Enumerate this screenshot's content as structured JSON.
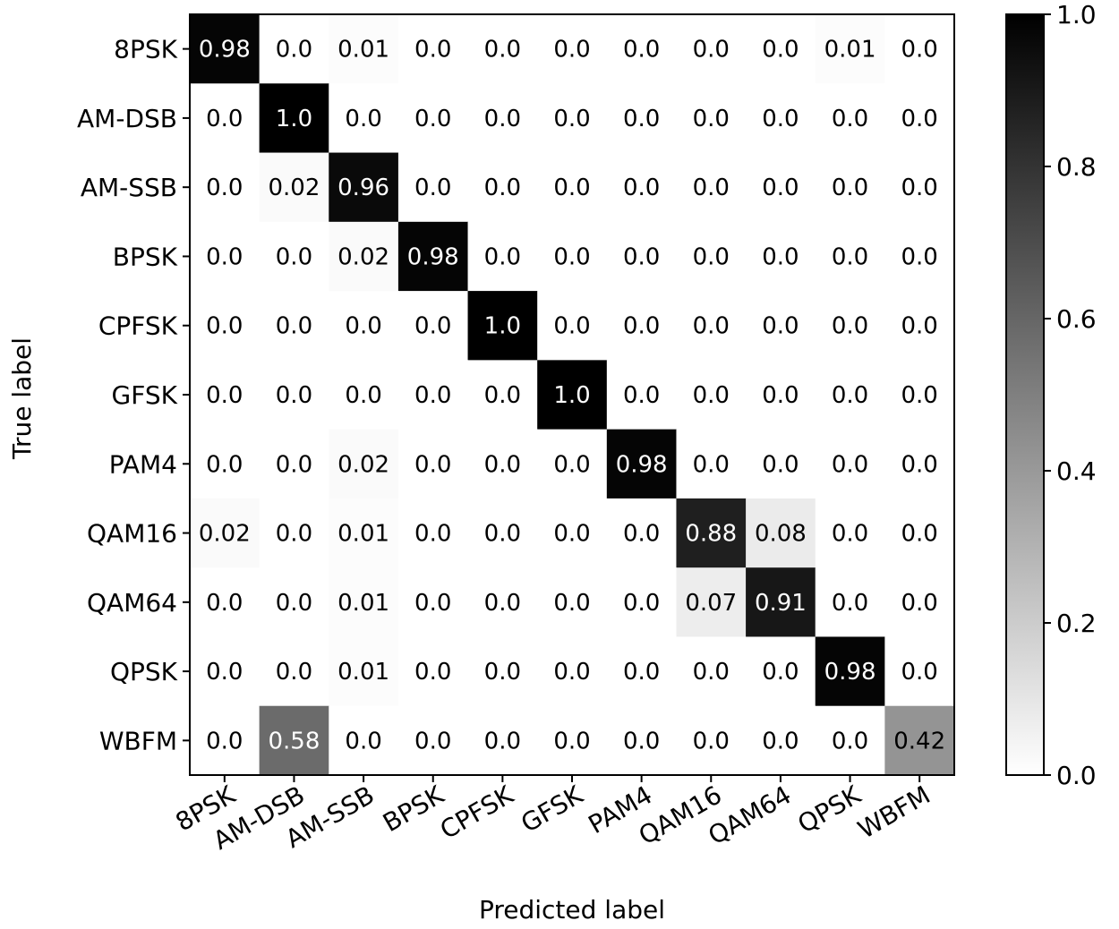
{
  "chart_data": {
    "type": "heatmap",
    "title": "",
    "xlabel": "Predicted label",
    "ylabel": "True label",
    "x_categories": [
      "8PSK",
      "AM-DSB",
      "AM-SSB",
      "BPSK",
      "CPFSK",
      "GFSK",
      "PAM4",
      "QAM16",
      "QAM64",
      "QPSK",
      "WBFM"
    ],
    "y_categories": [
      "8PSK",
      "AM-DSB",
      "AM-SSB",
      "BPSK",
      "CPFSK",
      "GFSK",
      "PAM4",
      "QAM16",
      "QAM64",
      "QPSK",
      "WBFM"
    ],
    "matrix": [
      [
        0.98,
        0.0,
        0.01,
        0.0,
        0.0,
        0.0,
        0.0,
        0.0,
        0.0,
        0.01,
        0.0
      ],
      [
        0.0,
        1.0,
        0.0,
        0.0,
        0.0,
        0.0,
        0.0,
        0.0,
        0.0,
        0.0,
        0.0
      ],
      [
        0.0,
        0.02,
        0.96,
        0.0,
        0.0,
        0.0,
        0.0,
        0.0,
        0.0,
        0.0,
        0.0
      ],
      [
        0.0,
        0.0,
        0.02,
        0.98,
        0.0,
        0.0,
        0.0,
        0.0,
        0.0,
        0.0,
        0.0
      ],
      [
        0.0,
        0.0,
        0.0,
        0.0,
        1.0,
        0.0,
        0.0,
        0.0,
        0.0,
        0.0,
        0.0
      ],
      [
        0.0,
        0.0,
        0.0,
        0.0,
        0.0,
        1.0,
        0.0,
        0.0,
        0.0,
        0.0,
        0.0
      ],
      [
        0.0,
        0.0,
        0.02,
        0.0,
        0.0,
        0.0,
        0.98,
        0.0,
        0.0,
        0.0,
        0.0
      ],
      [
        0.02,
        0.0,
        0.01,
        0.0,
        0.0,
        0.0,
        0.0,
        0.88,
        0.08,
        0.0,
        0.0
      ],
      [
        0.0,
        0.0,
        0.01,
        0.0,
        0.0,
        0.0,
        0.0,
        0.07,
        0.91,
        0.0,
        0.0
      ],
      [
        0.0,
        0.0,
        0.01,
        0.0,
        0.0,
        0.0,
        0.0,
        0.0,
        0.0,
        0.98,
        0.0
      ],
      [
        0.0,
        0.58,
        0.0,
        0.0,
        0.0,
        0.0,
        0.0,
        0.0,
        0.0,
        0.0,
        0.42
      ]
    ],
    "colormap": "greys",
    "colorbar": {
      "range": [
        0.0,
        1.0
      ],
      "ticks": [
        0.0,
        0.2,
        0.4,
        0.6,
        0.8,
        1.0
      ],
      "tick_labels": [
        "0.0",
        "0.2",
        "0.4",
        "0.6",
        "0.8",
        "1.0"
      ]
    }
  }
}
